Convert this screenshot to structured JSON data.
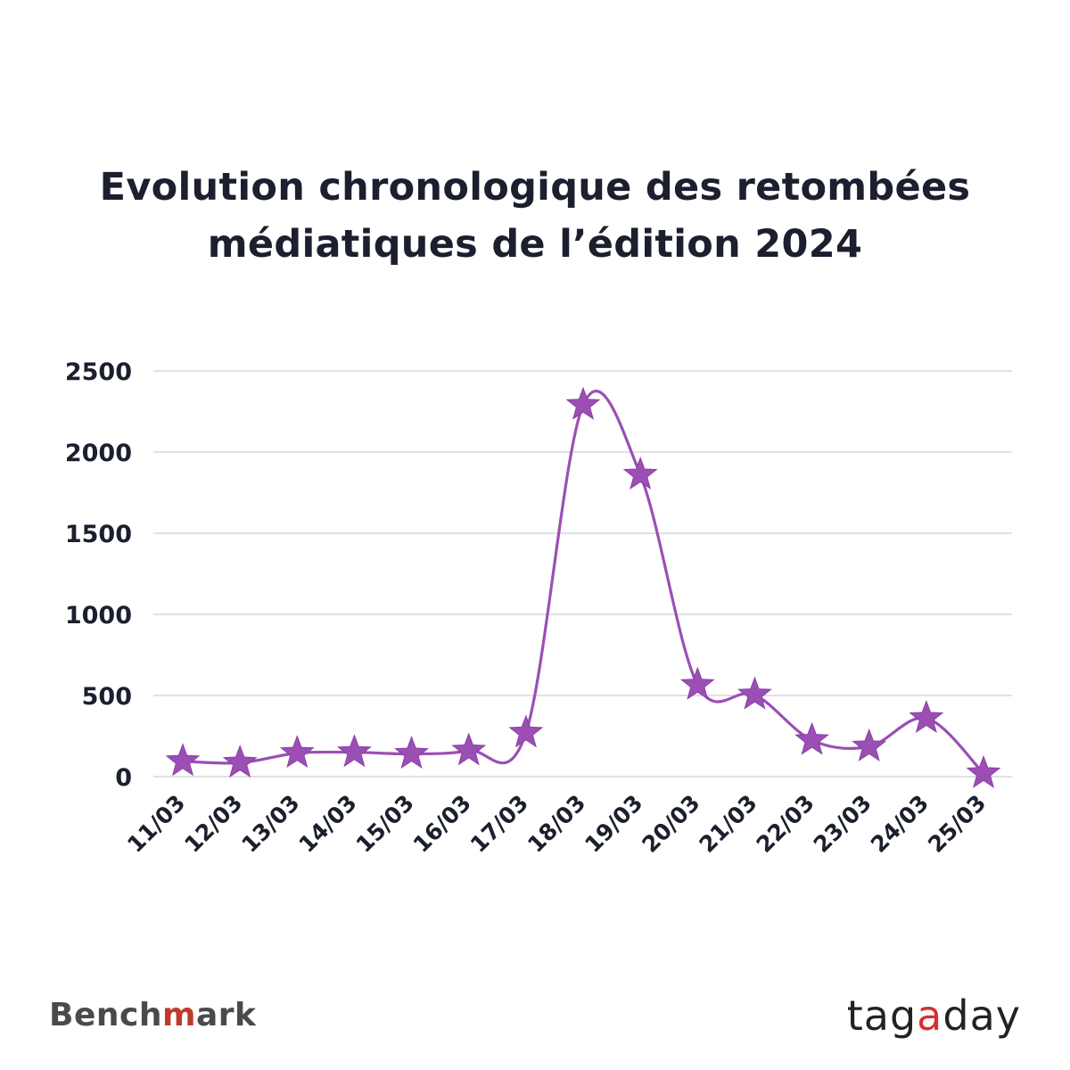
{
  "title_lines": [
    "Evolution chronologique  des retombées",
    "médiatiques de l’édition 2024"
  ],
  "chart_data": {
    "type": "line",
    "title": "Evolution chronologique  des retombées médiatiques de l’édition 2024",
    "xlabel": "",
    "ylabel": "",
    "categories": [
      "11/03",
      "12/03",
      "13/03",
      "14/03",
      "15/03",
      "16/03",
      "17/03",
      "18/03",
      "19/03",
      "20/03",
      "21/03",
      "22/03",
      "23/03",
      "24/03",
      "25/03"
    ],
    "values": [
      95,
      85,
      145,
      150,
      140,
      160,
      270,
      2290,
      1860,
      565,
      505,
      225,
      185,
      360,
      20
    ],
    "ylim": [
      0,
      2500
    ],
    "yticks": [
      0,
      500,
      1000,
      1500,
      2000,
      2500
    ],
    "grid": true,
    "marker": "star",
    "color": "#9b4fb5",
    "legend": "none"
  },
  "logos": {
    "left": {
      "before": "Bench",
      "mark": "m",
      "after": "ark"
    },
    "right": {
      "before": "tag",
      "mark": "a",
      "after": "day"
    }
  }
}
